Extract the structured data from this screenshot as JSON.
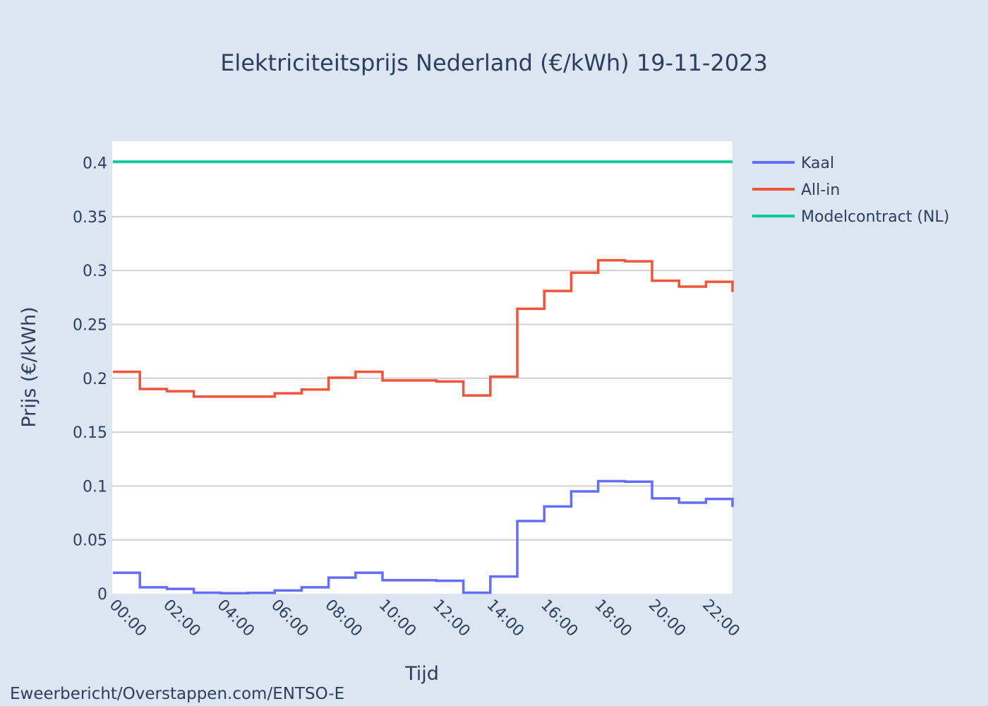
{
  "chart_data": {
    "type": "line",
    "title": "Elektriciteitsprijs Nederland (€/kWh) 19-11-2023",
    "xlabel": "Tijd",
    "ylabel": "Prijs (€/kWh)",
    "source": "Eweerbericht/Overstappen.com/ENTSO-E",
    "x": [
      "00:00",
      "01:00",
      "02:00",
      "03:00",
      "04:00",
      "05:00",
      "06:00",
      "07:00",
      "08:00",
      "09:00",
      "10:00",
      "11:00",
      "12:00",
      "13:00",
      "14:00",
      "15:00",
      "16:00",
      "17:00",
      "18:00",
      "19:00",
      "20:00",
      "21:00",
      "22:00",
      "23:00"
    ],
    "x_tick_labels": [
      "00:00",
      "02:00",
      "04:00",
      "06:00",
      "08:00",
      "10:00",
      "12:00",
      "14:00",
      "16:00",
      "18:00",
      "20:00",
      "22:00"
    ],
    "x_tick_index": [
      0,
      2,
      4,
      6,
      8,
      10,
      12,
      14,
      16,
      18,
      20,
      22
    ],
    "y_ticks": [
      0,
      0.05,
      0.1,
      0.15,
      0.2,
      0.25,
      0.3,
      0.35,
      0.4
    ],
    "y_tick_labels": [
      "0",
      "0.05",
      "0.1",
      "0.15",
      "0.2",
      "0.25",
      "0.3",
      "0.35",
      "0.4"
    ],
    "ylim": [
      0,
      0.42
    ],
    "grid": true,
    "legend_position": "right",
    "line_shape": "step",
    "series": [
      {
        "name": "Kaal",
        "color": "#636efa",
        "values": [
          0.0195,
          0.006,
          0.0045,
          0.001,
          0.0005,
          0.0008,
          0.003,
          0.006,
          0.015,
          0.0195,
          0.0125,
          0.0125,
          0.012,
          0.001,
          0.016,
          0.0675,
          0.081,
          0.095,
          0.1045,
          0.104,
          0.0885,
          0.0845,
          0.088,
          0.0805
        ]
      },
      {
        "name": "All-in",
        "color": "#ef553b",
        "values": [
          0.206,
          0.19,
          0.188,
          0.183,
          0.183,
          0.183,
          0.186,
          0.1895,
          0.2005,
          0.206,
          0.198,
          0.198,
          0.197,
          0.184,
          0.2015,
          0.2645,
          0.281,
          0.298,
          0.3095,
          0.3085,
          0.2905,
          0.285,
          0.2895,
          0.28
        ]
      },
      {
        "name": "Modelcontract (NL)",
        "color": "#00cc96",
        "values": [
          0.401,
          0.401,
          0.401,
          0.401,
          0.401,
          0.401,
          0.401,
          0.401,
          0.401,
          0.401,
          0.401,
          0.401,
          0.401,
          0.401,
          0.401,
          0.401,
          0.401,
          0.401,
          0.401,
          0.401,
          0.401,
          0.401,
          0.401,
          0.401
        ]
      }
    ]
  }
}
